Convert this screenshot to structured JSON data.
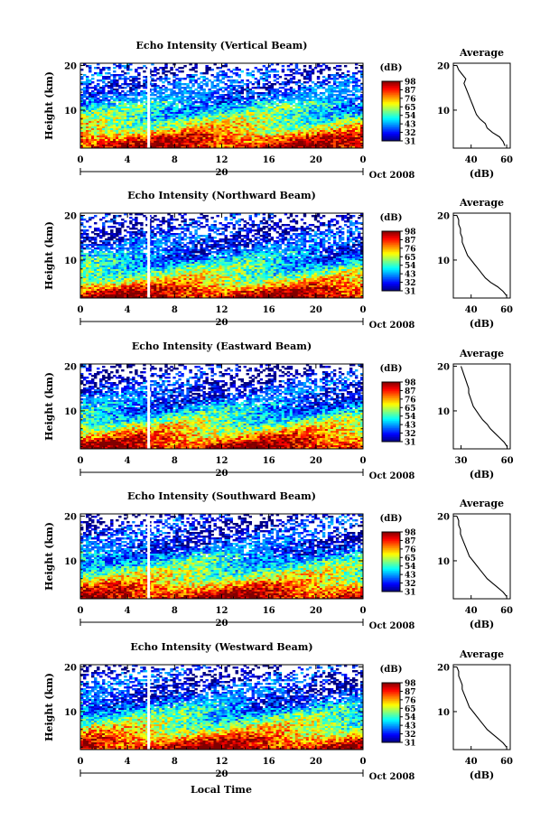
{
  "figure": {
    "date_label": "Oct 2008",
    "day_label": "20",
    "bottom_xlabel": "Local Time"
  },
  "chart_data": [
    {
      "type": "heatmap",
      "title": "Echo Intensity (Vertical Beam)",
      "xlabel": "",
      "ylabel": "Height (km)",
      "x_ticks": [
        "0",
        "4",
        "8",
        "12",
        "16",
        "20",
        "0"
      ],
      "y_ticks": [
        "10",
        "20"
      ],
      "xlim": [
        0,
        24
      ],
      "ylim": [
        1.5,
        20.5
      ],
      "data_gap_hour": 5.8,
      "colorbar": {
        "unit": "(dB)",
        "ticks": [
          "31",
          "32",
          "43",
          "54",
          "65",
          "76",
          "87",
          "98"
        ]
      },
      "profile": {
        "title": "Average",
        "xlabel": "(dB)",
        "x_ticks": [
          "40",
          "60"
        ],
        "xlim": [
          30,
          62
        ],
        "height_km": [
          2,
          3,
          4,
          5,
          6,
          7,
          8,
          9,
          10,
          11,
          12,
          13,
          14,
          15,
          16,
          17,
          18,
          19,
          20
        ],
        "db": [
          59,
          58,
          56,
          52,
          49,
          48,
          45,
          43,
          42,
          41,
          40,
          39,
          38,
          37,
          36,
          37,
          35,
          33,
          32
        ]
      }
    },
    {
      "type": "heatmap",
      "title": "Echo Intensity (Northward Beam)",
      "xlabel": "",
      "ylabel": "Height (km)",
      "x_ticks": [
        "0",
        "4",
        "8",
        "12",
        "16",
        "20",
        "0"
      ],
      "y_ticks": [
        "10",
        "20"
      ],
      "xlim": [
        0,
        24
      ],
      "ylim": [
        1.5,
        20.5
      ],
      "data_gap_hour": 5.8,
      "colorbar": {
        "unit": "(dB)",
        "ticks": [
          "31",
          "32",
          "43",
          "54",
          "65",
          "76",
          "87",
          "98"
        ]
      },
      "profile": {
        "title": "Average",
        "xlabel": "(dB)",
        "x_ticks": [
          "40",
          "60"
        ],
        "xlim": [
          30,
          62
        ],
        "height_km": [
          2,
          3,
          4,
          5,
          6,
          7,
          8,
          9,
          10,
          11,
          12,
          13,
          14,
          15,
          16,
          17,
          18,
          19,
          20
        ],
        "db": [
          60,
          58,
          55,
          51,
          48,
          46,
          44,
          42,
          40,
          38,
          37,
          36,
          35,
          35,
          34,
          34,
          33,
          33,
          32
        ]
      }
    },
    {
      "type": "heatmap",
      "title": "Echo Intensity (Eastward Beam)",
      "xlabel": "",
      "ylabel": "Height (km)",
      "x_ticks": [
        "0",
        "4",
        "8",
        "12",
        "16",
        "20",
        "0"
      ],
      "y_ticks": [
        "10",
        "20"
      ],
      "xlim": [
        0,
        24
      ],
      "ylim": [
        1.5,
        20.5
      ],
      "data_gap_hour": 5.8,
      "colorbar": {
        "unit": "(dB)",
        "ticks": [
          "31",
          "32",
          "43",
          "54",
          "65",
          "76",
          "87",
          "98"
        ]
      },
      "profile": {
        "title": "Average",
        "xlabel": "(dB)",
        "x_ticks": [
          "30",
          "60"
        ],
        "xlim": [
          25,
          62
        ],
        "height_km": [
          2,
          3,
          4,
          5,
          6,
          7,
          8,
          9,
          10,
          11,
          12,
          13,
          14,
          15,
          16,
          17,
          18,
          19,
          20
        ],
        "db": [
          60,
          58,
          55,
          52,
          49,
          47,
          44,
          42,
          40,
          38,
          37,
          36,
          35,
          35,
          34,
          33,
          32,
          31,
          30
        ]
      }
    },
    {
      "type": "heatmap",
      "title": "Echo Intensity (Southward Beam)",
      "xlabel": "",
      "ylabel": "Height (km)",
      "x_ticks": [
        "0",
        "4",
        "8",
        "12",
        "16",
        "20",
        "0"
      ],
      "y_ticks": [
        "10",
        "20"
      ],
      "xlim": [
        0,
        24
      ],
      "ylim": [
        1.5,
        20.5
      ],
      "data_gap_hour": 5.8,
      "colorbar": {
        "unit": "(dB)",
        "ticks": [
          "31",
          "32",
          "43",
          "54",
          "65",
          "76",
          "87",
          "98"
        ]
      },
      "profile": {
        "title": "Average",
        "xlabel": "(dB)",
        "x_ticks": [
          "40",
          "60"
        ],
        "xlim": [
          30,
          62
        ],
        "height_km": [
          2,
          3,
          4,
          5,
          6,
          7,
          8,
          9,
          10,
          11,
          12,
          13,
          14,
          15,
          16,
          17,
          18,
          19,
          20
        ],
        "db": [
          60,
          58,
          55,
          52,
          49,
          47,
          45,
          43,
          41,
          39,
          38,
          37,
          36,
          35,
          34,
          34,
          33,
          33,
          32
        ]
      }
    },
    {
      "type": "heatmap",
      "title": "Echo Intensity (Westward Beam)",
      "xlabel": "Local Time",
      "ylabel": "Height (km)",
      "x_ticks": [
        "0",
        "4",
        "8",
        "12",
        "16",
        "20",
        "0"
      ],
      "y_ticks": [
        "10",
        "20"
      ],
      "xlim": [
        0,
        24
      ],
      "ylim": [
        1.5,
        20.5
      ],
      "data_gap_hour": 5.8,
      "colorbar": {
        "unit": "(dB)",
        "ticks": [
          "31",
          "32",
          "43",
          "54",
          "65",
          "76",
          "87",
          "98"
        ]
      },
      "profile": {
        "title": "Average",
        "xlabel": "(dB)",
        "x_ticks": [
          "40",
          "60"
        ],
        "xlim": [
          30,
          62
        ],
        "height_km": [
          2,
          3,
          4,
          5,
          6,
          7,
          8,
          9,
          10,
          11,
          12,
          13,
          14,
          15,
          16,
          17,
          18,
          19,
          20
        ],
        "db": [
          60,
          58,
          55,
          52,
          49,
          47,
          45,
          43,
          41,
          39,
          38,
          37,
          36,
          35,
          35,
          34,
          33,
          33,
          32
        ]
      }
    }
  ]
}
